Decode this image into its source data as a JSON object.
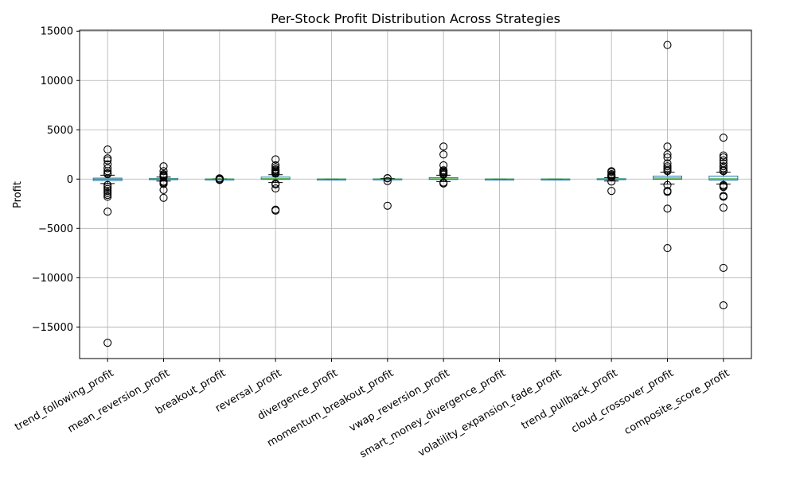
{
  "chart_data": {
    "type": "box",
    "title": "Per-Stock Profit Distribution Across Strategies",
    "xlabel": "",
    "ylabel": "Profit",
    "ylim": [
      -18200,
      15100
    ],
    "yticks": [
      -15000,
      -10000,
      -5000,
      0,
      5000,
      10000,
      15000
    ],
    "ytick_labels": [
      "−15000",
      "−10000",
      "−5000",
      "0",
      "5000",
      "10000",
      "15000"
    ],
    "grid": true,
    "categories": [
      "trend_following_profit",
      "mean_reversion_profit",
      "breakout_profit",
      "reversal_profit",
      "divergence_profit",
      "momentum_breakout_profit",
      "vwap_reversion_profit",
      "smart_money_divergence_profit",
      "volatility_expansion_fade_profit",
      "trend_pullback_profit",
      "cloud_crossover_profit",
      "composite_score_profit"
    ],
    "boxes": [
      {
        "q1": -150,
        "median": -20,
        "q3": 100,
        "whisker_low": -450,
        "whisker_high": 400,
        "outliers": [
          3000,
          2100,
          1900,
          1500,
          1100,
          800,
          600,
          500,
          -600,
          -800,
          -1000,
          -1200,
          -1400,
          -1600,
          -1800,
          -3300,
          -16600
        ]
      },
      {
        "q1": -60,
        "median": 0,
        "q3": 50,
        "whisker_low": -200,
        "whisker_high": 200,
        "outliers": [
          1300,
          800,
          500,
          400,
          300,
          250,
          220,
          -250,
          -300,
          -400,
          -500,
          -1100,
          -1900
        ]
      },
      {
        "q1": -10,
        "median": 0,
        "q3": 10,
        "whisker_low": -30,
        "whisker_high": 30,
        "outliers": [
          80,
          60,
          50,
          -50,
          -70,
          -90
        ]
      },
      {
        "q1": -30,
        "median": 30,
        "q3": 200,
        "whisker_low": -350,
        "whisker_high": 450,
        "outliers": [
          2000,
          1400,
          1200,
          1000,
          900,
          800,
          700,
          600,
          550,
          -450,
          -550,
          -950,
          -3100,
          -3200
        ]
      },
      {
        "q1": -5,
        "median": 0,
        "q3": 5,
        "whisker_low": -15,
        "whisker_high": 15,
        "outliers": []
      },
      {
        "q1": -20,
        "median": 0,
        "q3": 20,
        "whisker_low": -60,
        "whisker_high": 60,
        "outliers": [
          100,
          80,
          -200,
          -2700
        ]
      },
      {
        "q1": -40,
        "median": 20,
        "q3": 150,
        "whisker_low": -250,
        "whisker_high": 400,
        "outliers": [
          3300,
          2500,
          1400,
          900,
          800,
          700,
          600,
          500,
          450,
          -350,
          -450
        ]
      },
      {
        "q1": -5,
        "median": 0,
        "q3": 5,
        "whisker_low": -15,
        "whisker_high": 15,
        "outliers": []
      },
      {
        "q1": -5,
        "median": 0,
        "q3": 5,
        "whisker_low": -15,
        "whisker_high": 15,
        "outliers": []
      },
      {
        "q1": -60,
        "median": 0,
        "q3": 40,
        "whisker_low": -200,
        "whisker_high": 150,
        "outliers": [
          800,
          700,
          500,
          400,
          300,
          250,
          200,
          -250,
          -1200
        ]
      },
      {
        "q1": -20,
        "median": 100,
        "q3": 300,
        "whisker_low": -500,
        "whisker_high": 700,
        "outliers": [
          13600,
          3300,
          2500,
          2200,
          1600,
          1300,
          1100,
          900,
          800,
          -600,
          -1200,
          -1300,
          -3000,
          -7000
        ]
      },
      {
        "q1": -100,
        "median": 20,
        "q3": 300,
        "whisker_low": -500,
        "whisker_high": 700,
        "outliers": [
          4200,
          2400,
          2200,
          1900,
          1600,
          1300,
          1100,
          900,
          800,
          -600,
          -700,
          -800,
          -1700,
          -1800,
          -2900,
          -9000,
          -12800
        ]
      }
    ],
    "colors": {
      "box": "#1f77b4",
      "median": "#2ca02c",
      "whisker": "#000000",
      "outlier_edge": "#000000",
      "grid": "#b0b0b0"
    }
  }
}
